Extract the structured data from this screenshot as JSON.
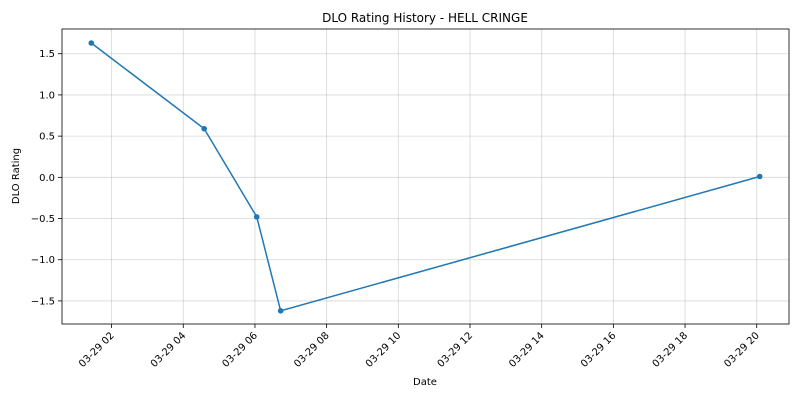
{
  "chart_data": {
    "type": "line",
    "title": "DLO Rating History - HELL CRINGE",
    "xlabel": "Date",
    "ylabel": "DLO Rating",
    "x_is_time": true,
    "x_time_format": "MM-DD HH",
    "xlim": [
      "03-29 00:37",
      "03-29 20:54"
    ],
    "ylim": [
      -1.78,
      1.8
    ],
    "x_ticks": [
      "03-29 02",
      "03-29 04",
      "03-29 06",
      "03-29 08",
      "03-29 10",
      "03-29 12",
      "03-29 14",
      "03-29 16",
      "03-29 18",
      "03-29 20"
    ],
    "y_ticks": [
      -1.5,
      -1.0,
      -0.5,
      0.0,
      0.5,
      1.0,
      1.5
    ],
    "y_tick_labels": [
      "−1.5",
      "−1.0",
      "−0.5",
      "0.0",
      "0.5",
      "1.0",
      "1.5"
    ],
    "grid": true,
    "series": [
      {
        "color": "#1f77b4",
        "marker": "circle",
        "x": [
          "03-29 01:26",
          "03-29 04:35",
          "03-29 06:03",
          "03-29 06:43",
          "03-29 20:05"
        ],
        "y": [
          1.63,
          0.59,
          -0.48,
          -1.62,
          0.01
        ]
      }
    ]
  }
}
